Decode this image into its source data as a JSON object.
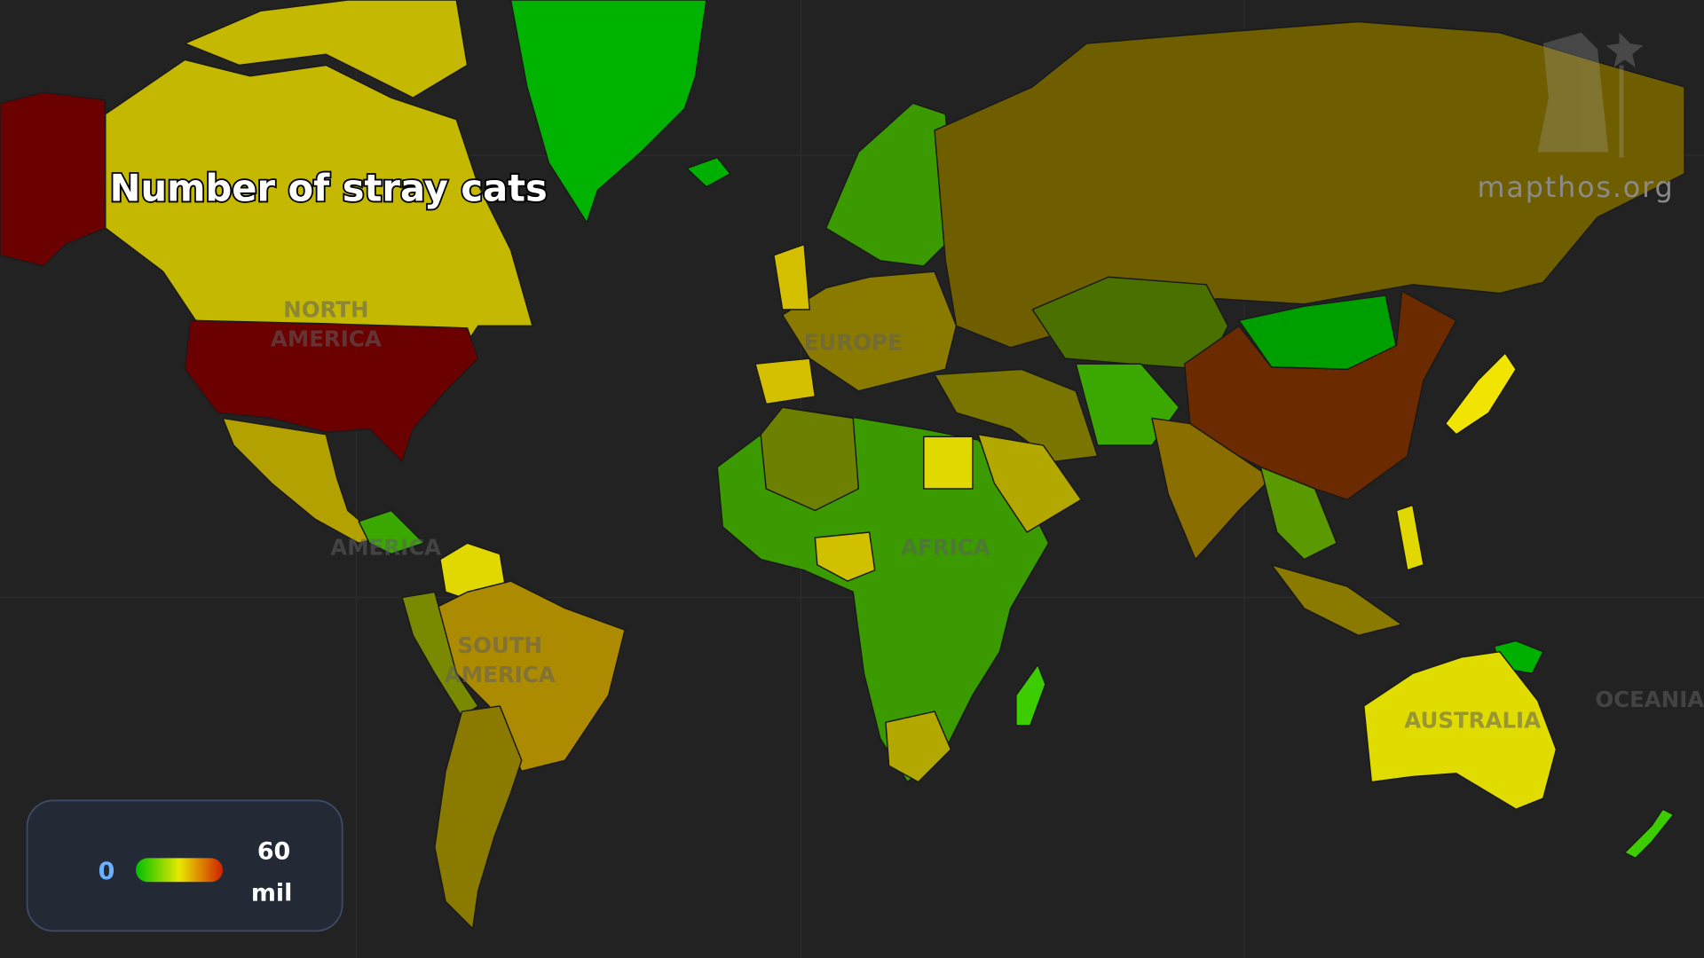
{
  "title": "Number of stray cats",
  "watermark": "mapthos.org",
  "region_labels": [
    {
      "lines": [
        "NORTH",
        "AMERICA"
      ]
    },
    {
      "lines": [
        "EUROPE"
      ]
    },
    {
      "lines": [
        "AMERICA"
      ]
    },
    {
      "lines": [
        "AFRICA"
      ]
    },
    {
      "lines": [
        "SOUTH",
        "AMERICA"
      ]
    },
    {
      "lines": [
        "AUSTRALIA"
      ]
    },
    {
      "lines": [
        "OCEANIA"
      ]
    }
  ],
  "legend": {
    "min": 0,
    "max": 60,
    "unit": "mil",
    "colors": [
      "#00c000",
      "#e8e800",
      "#d02000"
    ]
  }
}
